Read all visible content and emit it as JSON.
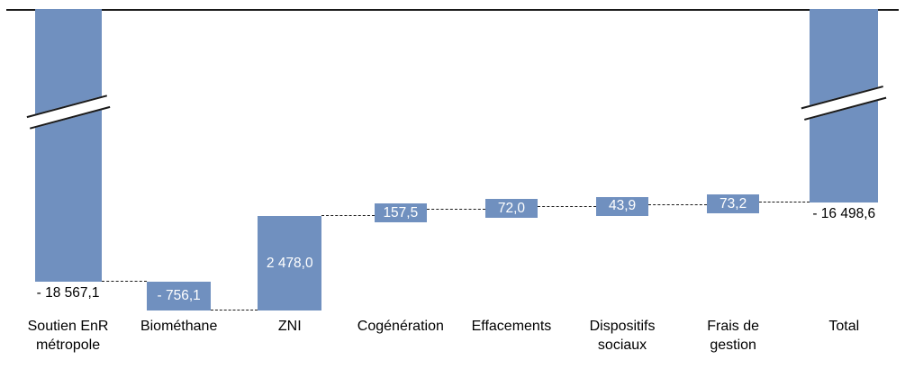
{
  "chart_data": {
    "type": "waterfall",
    "title": "",
    "categories": [
      [
        "Soutien EnR",
        "métropole"
      ],
      [
        "Biométhane"
      ],
      [
        "ZNI"
      ],
      [
        "Cogénération"
      ],
      [
        "Effacements"
      ],
      [
        "Dispositifs",
        "sociaux"
      ],
      [
        "Frais de",
        "gestion"
      ],
      [
        "Total"
      ]
    ],
    "values": [
      -18567.1,
      -756.1,
      2478.0,
      157.5,
      72.0,
      43.9,
      73.2,
      -16498.6
    ],
    "value_labels": [
      "- 18 567,1",
      "- 756,1",
      "2 478,0",
      "157,5",
      "72,0",
      "43,9",
      "73,2",
      "- 16 498,6"
    ],
    "bar_roles": [
      "start",
      "delta",
      "delta",
      "delta",
      "delta",
      "delta",
      "delta",
      "total"
    ],
    "axis_break_bars": [
      0,
      7
    ],
    "bar_color": "#7090BF",
    "inside_label_color": "#FFFFFF",
    "outside_label_color": "#000000",
    "connector_style": "dashed",
    "zero_line_visible": true,
    "broken_axis": true,
    "legend": "none",
    "grid": "off"
  }
}
